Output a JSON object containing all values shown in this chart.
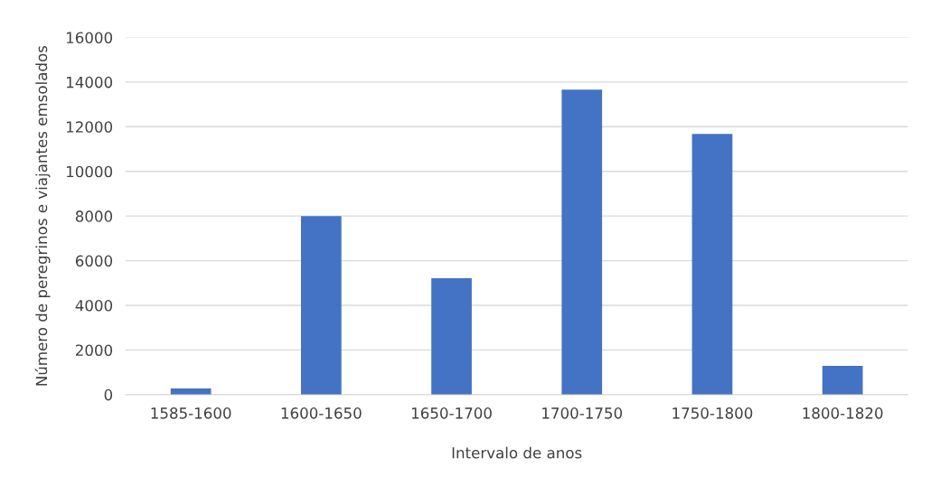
{
  "chart_data": {
    "type": "bar",
    "xlabel": "Intervalo de anos",
    "ylabel": "Número de peregrinos e viajantes emsolados",
    "categories": [
      "1585-1600",
      "1600-1650",
      "1650-1700",
      "1700-1750",
      "1750-1800",
      "1800-1820"
    ],
    "values": [
      280,
      8000,
      5210,
      13660,
      11680,
      1290
    ],
    "color": "#4472c4",
    "ylim": [
      0,
      16000
    ],
    "yticks": [
      0,
      2000,
      4000,
      6000,
      8000,
      10000,
      12000,
      14000,
      16000
    ],
    "grid": "y",
    "legend": false
  }
}
